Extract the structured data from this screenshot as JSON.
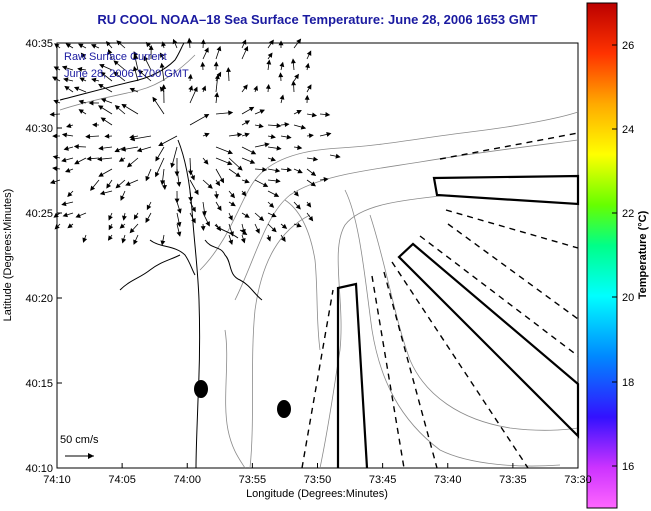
{
  "title": "RU COOL  NOAA–18  Sea Surface Temperature:  June 28, 2006 1653 GMT",
  "legend_line1": "Raw Surface Current",
  "legend_line2": "June 28, 2006 1700 GMT",
  "scale_label": "50 cm/s",
  "x_axis_label": "Longitude (Degrees:Minutes)",
  "y_axis_label": "Latitude (Degrees:Minutes)",
  "colorbar_label": "Temperature (°C)",
  "x_ticks": [
    "74:10",
    "74:05",
    "74:00",
    "73:55",
    "73:50",
    "73:45",
    "73:40",
    "73:35",
    "73:30"
  ],
  "y_ticks": [
    "40:35",
    "40:30",
    "40:25",
    "40:20",
    "40:15",
    "40:10"
  ],
  "colorbar_ticks": [
    "26",
    "24",
    "22",
    "20",
    "18",
    "16"
  ],
  "colors": {
    "title": "#1a1aa0",
    "legend_text": "#1a1aa0"
  }
}
